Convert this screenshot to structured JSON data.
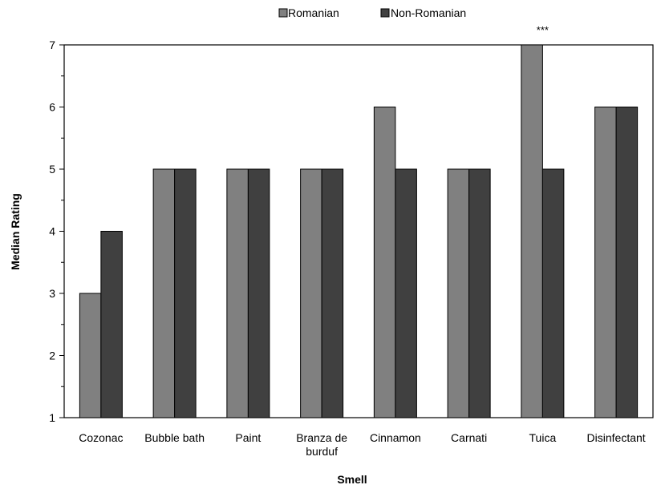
{
  "chart_data": {
    "type": "bar",
    "xlabel": "Smell",
    "ylabel": "Median Rating",
    "ylim": [
      1,
      7
    ],
    "yticks": [
      "1",
      "2",
      "3",
      "4",
      "5",
      "6",
      "7"
    ],
    "grid": false,
    "legend_position": "top-center",
    "categories": [
      "Cozonac",
      "Bubble bath",
      "Paint",
      "Branza de burduf",
      "Cinnamon",
      "Carnati",
      "Tuica",
      "Disinfectant"
    ],
    "series": [
      {
        "name": "Romanian",
        "color": "#808080",
        "values": [
          3,
          5,
          5,
          5,
          6,
          5,
          7,
          6
        ]
      },
      {
        "name": "Non-Romanian",
        "color": "#404040",
        "values": [
          4,
          5,
          5,
          5,
          5,
          5,
          5,
          6
        ]
      }
    ],
    "annotations": [
      {
        "category": "Tuica",
        "text": "***"
      }
    ]
  }
}
